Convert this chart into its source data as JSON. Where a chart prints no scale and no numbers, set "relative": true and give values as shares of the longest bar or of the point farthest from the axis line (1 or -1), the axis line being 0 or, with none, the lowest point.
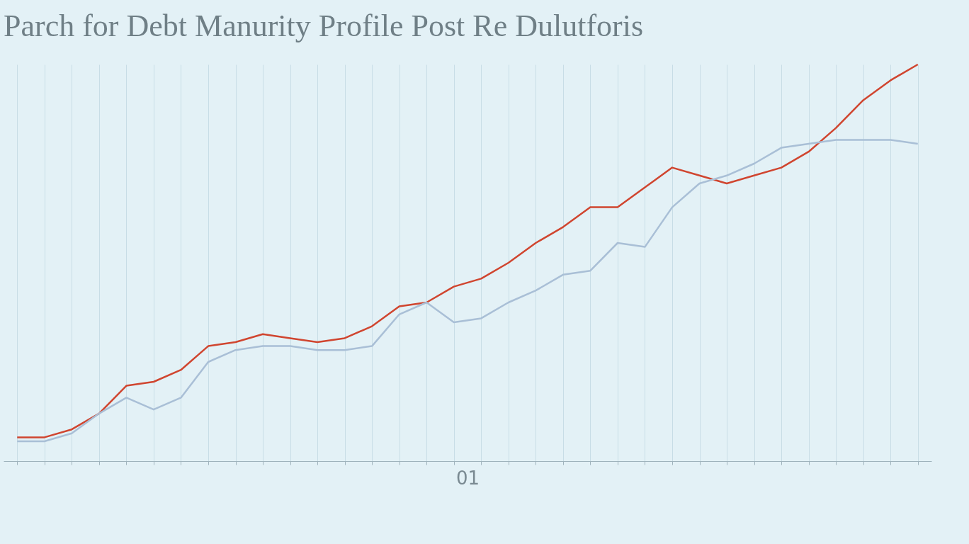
{
  "chart_data": {
    "type": "line",
    "title": "Parch for Debt Manurity Profile Post Re Dulutforis",
    "xlabel": "01",
    "relative": true,
    "grid": "x",
    "line_style": "solid",
    "categories": [
      null,
      null,
      null,
      null,
      null,
      null,
      null,
      null,
      null,
      null,
      null,
      null,
      null,
      null,
      null,
      null,
      null,
      null,
      null,
      null,
      null,
      null,
      null,
      null,
      null,
      null,
      null,
      null,
      null,
      null,
      null,
      null,
      null,
      null
    ],
    "series": [
      {
        "color": "#d0452f",
        "values": [
          0.06,
          0.06,
          0.08,
          0.12,
          0.19,
          0.2,
          0.23,
          0.29,
          0.3,
          0.32,
          0.31,
          0.3,
          0.31,
          0.34,
          0.39,
          0.4,
          0.44,
          0.46,
          0.5,
          0.55,
          0.59,
          0.64,
          0.64,
          0.69,
          0.74,
          0.72,
          0.7,
          0.72,
          0.74,
          0.78,
          0.84,
          0.91,
          0.96,
          1
        ]
      },
      {
        "color": "#a9bfd6",
        "values": [
          0.05,
          0.05,
          0.07,
          0.12,
          0.16,
          0.13,
          0.16,
          0.25,
          0.28,
          0.29,
          0.29,
          0.28,
          0.28,
          0.29,
          0.37,
          0.4,
          0.35,
          0.36,
          0.4,
          0.43,
          0.47,
          0.48,
          0.55,
          0.54,
          0.64,
          0.7,
          0.72,
          0.75,
          0.79,
          0.8,
          0.81,
          0.81,
          0.81,
          0.8
        ]
      }
    ]
  }
}
